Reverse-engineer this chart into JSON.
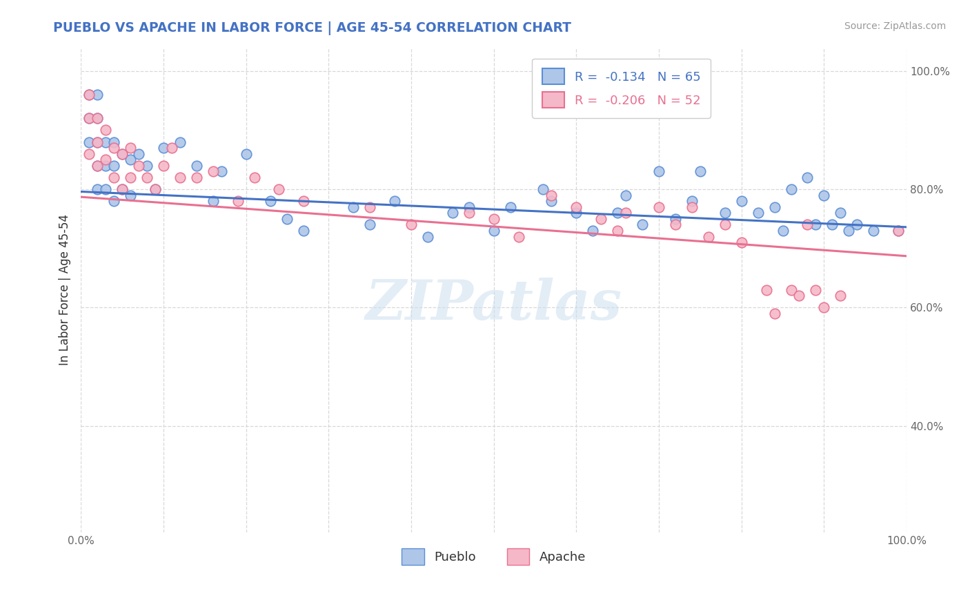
{
  "title": "PUEBLO VS APACHE IN LABOR FORCE | AGE 45-54 CORRELATION CHART",
  "source": "Source: ZipAtlas.com",
  "ylabel": "In Labor Force | Age 45-54",
  "xlim": [
    0.0,
    1.0
  ],
  "ylim": [
    0.22,
    1.04
  ],
  "pueblo_color": "#aec6e8",
  "apache_color": "#f5b8c8",
  "pueblo_edge_color": "#5b8ed6",
  "apache_edge_color": "#e87090",
  "pueblo_line_color": "#4472c4",
  "apache_line_color": "#e87090",
  "pueblo_r": "-0.134",
  "pueblo_n": "65",
  "apache_r": "-0.206",
  "apache_n": "52",
  "watermark": "ZIPatlas",
  "title_color": "#4472c4",
  "background_color": "#ffffff",
  "grid_color": "#d8d8d8",
  "pueblo_scatter_x": [
    0.01,
    0.01,
    0.01,
    0.02,
    0.02,
    0.02,
    0.02,
    0.02,
    0.03,
    0.03,
    0.03,
    0.04,
    0.04,
    0.04,
    0.05,
    0.05,
    0.06,
    0.06,
    0.07,
    0.08,
    0.09,
    0.1,
    0.12,
    0.14,
    0.16,
    0.17,
    0.2,
    0.23,
    0.25,
    0.27,
    0.33,
    0.35,
    0.38,
    0.42,
    0.45,
    0.47,
    0.5,
    0.52,
    0.56,
    0.57,
    0.6,
    0.62,
    0.65,
    0.66,
    0.68,
    0.7,
    0.72,
    0.74,
    0.75,
    0.78,
    0.8,
    0.82,
    0.84,
    0.85,
    0.86,
    0.88,
    0.89,
    0.9,
    0.91,
    0.92,
    0.93,
    0.94,
    0.96,
    0.99
  ],
  "pueblo_scatter_y": [
    0.96,
    0.92,
    0.88,
    0.96,
    0.92,
    0.88,
    0.84,
    0.8,
    0.88,
    0.84,
    0.8,
    0.88,
    0.84,
    0.78,
    0.86,
    0.8,
    0.85,
    0.79,
    0.86,
    0.84,
    0.8,
    0.87,
    0.88,
    0.84,
    0.78,
    0.83,
    0.86,
    0.78,
    0.75,
    0.73,
    0.77,
    0.74,
    0.78,
    0.72,
    0.76,
    0.77,
    0.73,
    0.77,
    0.8,
    0.78,
    0.76,
    0.73,
    0.76,
    0.79,
    0.74,
    0.83,
    0.75,
    0.78,
    0.83,
    0.76,
    0.78,
    0.76,
    0.77,
    0.73,
    0.8,
    0.82,
    0.74,
    0.79,
    0.74,
    0.76,
    0.73,
    0.74,
    0.73,
    0.73
  ],
  "apache_scatter_x": [
    0.01,
    0.01,
    0.01,
    0.02,
    0.02,
    0.02,
    0.03,
    0.03,
    0.04,
    0.04,
    0.05,
    0.05,
    0.06,
    0.06,
    0.07,
    0.08,
    0.09,
    0.1,
    0.11,
    0.12,
    0.14,
    0.16,
    0.19,
    0.21,
    0.24,
    0.27,
    0.35,
    0.4,
    0.47,
    0.5,
    0.53,
    0.57,
    0.6,
    0.63,
    0.65,
    0.66,
    0.7,
    0.72,
    0.74,
    0.76,
    0.78,
    0.8,
    0.83,
    0.84,
    0.86,
    0.87,
    0.88,
    0.89,
    0.9,
    0.92,
    0.99
  ],
  "apache_scatter_y": [
    0.96,
    0.92,
    0.86,
    0.92,
    0.88,
    0.84,
    0.9,
    0.85,
    0.87,
    0.82,
    0.86,
    0.8,
    0.87,
    0.82,
    0.84,
    0.82,
    0.8,
    0.84,
    0.87,
    0.82,
    0.82,
    0.83,
    0.78,
    0.82,
    0.8,
    0.78,
    0.77,
    0.74,
    0.76,
    0.75,
    0.72,
    0.79,
    0.77,
    0.75,
    0.73,
    0.76,
    0.77,
    0.74,
    0.77,
    0.72,
    0.74,
    0.71,
    0.63,
    0.59,
    0.63,
    0.62,
    0.74,
    0.63,
    0.6,
    0.62,
    0.73
  ]
}
